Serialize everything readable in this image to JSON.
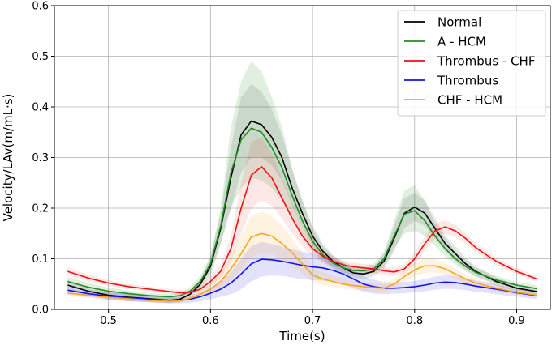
{
  "chart_data": {
    "type": "line",
    "title": "",
    "xlabel": "Time(s)",
    "ylabel": "Velocity/LAv(m/mL·s)",
    "xlim": [
      0.447,
      0.933
    ],
    "ylim": [
      0,
      0.6
    ],
    "xticks": [
      0.5,
      0.6,
      0.7,
      0.8,
      0.9
    ],
    "xtick_labels": [
      "0.5",
      "0.6",
      "0.7",
      "0.8",
      "0.9"
    ],
    "yticks": [
      0,
      0.1,
      0.2,
      0.3,
      0.4,
      0.5,
      0.6
    ],
    "ytick_labels": [
      "0.0",
      "0.1",
      "0.2",
      "0.3",
      "0.4",
      "0.5",
      "0.6"
    ],
    "grid": true,
    "legend_position": "top-right",
    "series": [
      {
        "name": "Normal",
        "color": "#000000",
        "band_opacity": 0.1,
        "x": [
          0.46,
          0.48,
          0.5,
          0.52,
          0.54,
          0.56,
          0.57,
          0.58,
          0.59,
          0.6,
          0.61,
          0.62,
          0.63,
          0.64,
          0.65,
          0.66,
          0.67,
          0.68,
          0.69,
          0.7,
          0.71,
          0.72,
          0.73,
          0.74,
          0.75,
          0.76,
          0.77,
          0.78,
          0.79,
          0.8,
          0.81,
          0.82,
          0.83,
          0.84,
          0.85,
          0.86,
          0.88,
          0.9,
          0.92
        ],
        "y": [
          0.048,
          0.036,
          0.028,
          0.024,
          0.021,
          0.018,
          0.02,
          0.03,
          0.05,
          0.085,
          0.16,
          0.26,
          0.345,
          0.372,
          0.365,
          0.34,
          0.3,
          0.24,
          0.19,
          0.145,
          0.115,
          0.095,
          0.082,
          0.072,
          0.07,
          0.075,
          0.095,
          0.14,
          0.19,
          0.202,
          0.19,
          0.16,
          0.13,
          0.11,
          0.09,
          0.075,
          0.055,
          0.042,
          0.035
        ],
        "lower": [
          0.038,
          0.028,
          0.02,
          0.016,
          0.014,
          0.012,
          0.014,
          0.022,
          0.04,
          0.065,
          0.13,
          0.2,
          0.27,
          0.3,
          0.3,
          0.285,
          0.255,
          0.205,
          0.165,
          0.125,
          0.1,
          0.083,
          0.072,
          0.063,
          0.06,
          0.065,
          0.08,
          0.115,
          0.16,
          0.175,
          0.165,
          0.14,
          0.115,
          0.095,
          0.078,
          0.065,
          0.047,
          0.035,
          0.03
        ],
        "upper": [
          0.058,
          0.044,
          0.036,
          0.032,
          0.028,
          0.024,
          0.026,
          0.038,
          0.06,
          0.105,
          0.19,
          0.32,
          0.42,
          0.445,
          0.43,
          0.395,
          0.345,
          0.275,
          0.215,
          0.165,
          0.13,
          0.107,
          0.092,
          0.081,
          0.08,
          0.085,
          0.11,
          0.165,
          0.22,
          0.23,
          0.215,
          0.18,
          0.145,
          0.125,
          0.102,
          0.085,
          0.063,
          0.049,
          0.04
        ]
      },
      {
        "name": "A - HCM",
        "color": "#228B22",
        "band_opacity": 0.14,
        "x": [
          0.46,
          0.48,
          0.5,
          0.52,
          0.54,
          0.56,
          0.57,
          0.58,
          0.59,
          0.6,
          0.61,
          0.62,
          0.63,
          0.64,
          0.65,
          0.66,
          0.67,
          0.68,
          0.69,
          0.7,
          0.71,
          0.72,
          0.73,
          0.74,
          0.75,
          0.76,
          0.77,
          0.78,
          0.79,
          0.8,
          0.81,
          0.82,
          0.83,
          0.84,
          0.85,
          0.86,
          0.88,
          0.9,
          0.92
        ],
        "y": [
          0.055,
          0.044,
          0.036,
          0.031,
          0.027,
          0.025,
          0.027,
          0.036,
          0.055,
          0.09,
          0.165,
          0.27,
          0.335,
          0.358,
          0.35,
          0.32,
          0.28,
          0.225,
          0.175,
          0.135,
          0.108,
          0.092,
          0.082,
          0.077,
          0.076,
          0.08,
          0.1,
          0.145,
          0.188,
          0.195,
          0.175,
          0.145,
          0.12,
          0.1,
          0.085,
          0.073,
          0.058,
          0.048,
          0.041
        ],
        "lower": [
          0.046,
          0.036,
          0.029,
          0.025,
          0.022,
          0.02,
          0.022,
          0.029,
          0.045,
          0.075,
          0.13,
          0.2,
          0.24,
          0.26,
          0.255,
          0.24,
          0.215,
          0.18,
          0.145,
          0.115,
          0.094,
          0.08,
          0.072,
          0.068,
          0.068,
          0.071,
          0.085,
          0.12,
          0.15,
          0.155,
          0.145,
          0.125,
          0.105,
          0.088,
          0.075,
          0.065,
          0.051,
          0.042,
          0.035
        ],
        "upper": [
          0.064,
          0.052,
          0.043,
          0.037,
          0.032,
          0.03,
          0.032,
          0.043,
          0.065,
          0.105,
          0.2,
          0.36,
          0.45,
          0.49,
          0.47,
          0.42,
          0.36,
          0.28,
          0.215,
          0.16,
          0.125,
          0.105,
          0.093,
          0.087,
          0.085,
          0.09,
          0.115,
          0.175,
          0.235,
          0.245,
          0.215,
          0.17,
          0.14,
          0.115,
          0.097,
          0.082,
          0.066,
          0.054,
          0.047
        ]
      },
      {
        "name": "Thrombus - CHF",
        "color": "#EE1111",
        "band_opacity": 0.1,
        "x": [
          0.46,
          0.48,
          0.5,
          0.52,
          0.54,
          0.56,
          0.57,
          0.58,
          0.59,
          0.6,
          0.61,
          0.62,
          0.63,
          0.64,
          0.65,
          0.66,
          0.67,
          0.68,
          0.69,
          0.7,
          0.71,
          0.72,
          0.73,
          0.74,
          0.75,
          0.76,
          0.77,
          0.78,
          0.79,
          0.8,
          0.81,
          0.82,
          0.83,
          0.84,
          0.85,
          0.86,
          0.87,
          0.88,
          0.9,
          0.92
        ],
        "y": [
          0.075,
          0.062,
          0.052,
          0.045,
          0.04,
          0.035,
          0.033,
          0.034,
          0.04,
          0.055,
          0.075,
          0.12,
          0.2,
          0.265,
          0.282,
          0.26,
          0.22,
          0.18,
          0.145,
          0.12,
          0.105,
          0.095,
          0.088,
          0.084,
          0.082,
          0.08,
          0.076,
          0.074,
          0.08,
          0.1,
          0.13,
          0.155,
          0.163,
          0.155,
          0.14,
          0.122,
          0.108,
          0.095,
          0.075,
          0.06
        ],
        "lower": [
          0.068,
          0.055,
          0.046,
          0.04,
          0.035,
          0.03,
          0.028,
          0.029,
          0.034,
          0.046,
          0.062,
          0.095,
          0.15,
          0.2,
          0.215,
          0.205,
          0.18,
          0.15,
          0.125,
          0.105,
          0.093,
          0.085,
          0.079,
          0.076,
          0.074,
          0.072,
          0.068,
          0.066,
          0.071,
          0.088,
          0.115,
          0.14,
          0.15,
          0.143,
          0.13,
          0.113,
          0.1,
          0.088,
          0.069,
          0.055
        ],
        "upper": [
          0.082,
          0.069,
          0.058,
          0.05,
          0.045,
          0.04,
          0.038,
          0.039,
          0.046,
          0.064,
          0.088,
          0.145,
          0.25,
          0.33,
          0.34,
          0.31,
          0.26,
          0.21,
          0.165,
          0.135,
          0.117,
          0.105,
          0.097,
          0.092,
          0.09,
          0.088,
          0.084,
          0.082,
          0.089,
          0.112,
          0.145,
          0.17,
          0.176,
          0.167,
          0.15,
          0.131,
          0.116,
          0.102,
          0.081,
          0.065
        ]
      },
      {
        "name": "Thrombus",
        "color": "#1111EE",
        "band_opacity": 0.12,
        "x": [
          0.46,
          0.48,
          0.5,
          0.52,
          0.54,
          0.56,
          0.57,
          0.58,
          0.59,
          0.6,
          0.61,
          0.62,
          0.63,
          0.64,
          0.65,
          0.66,
          0.67,
          0.68,
          0.69,
          0.7,
          0.71,
          0.72,
          0.73,
          0.74,
          0.75,
          0.76,
          0.77,
          0.78,
          0.79,
          0.8,
          0.81,
          0.82,
          0.83,
          0.84,
          0.85,
          0.86,
          0.88,
          0.9,
          0.92
        ],
        "y": [
          0.038,
          0.031,
          0.026,
          0.023,
          0.02,
          0.018,
          0.018,
          0.02,
          0.025,
          0.032,
          0.04,
          0.052,
          0.07,
          0.09,
          0.099,
          0.098,
          0.095,
          0.091,
          0.087,
          0.084,
          0.082,
          0.077,
          0.07,
          0.06,
          0.05,
          0.045,
          0.042,
          0.042,
          0.043,
          0.045,
          0.048,
          0.052,
          0.054,
          0.053,
          0.05,
          0.046,
          0.04,
          0.033,
          0.027
        ],
        "lower": [
          0.03,
          0.024,
          0.019,
          0.016,
          0.014,
          0.012,
          0.012,
          0.013,
          0.016,
          0.02,
          0.025,
          0.03,
          0.04,
          0.055,
          0.065,
          0.067,
          0.066,
          0.063,
          0.06,
          0.058,
          0.057,
          0.054,
          0.049,
          0.042,
          0.035,
          0.031,
          0.03,
          0.031,
          0.032,
          0.034,
          0.036,
          0.039,
          0.041,
          0.04,
          0.038,
          0.035,
          0.03,
          0.025,
          0.02
        ],
        "upper": [
          0.046,
          0.038,
          0.033,
          0.03,
          0.026,
          0.024,
          0.024,
          0.027,
          0.034,
          0.044,
          0.055,
          0.074,
          0.1,
          0.125,
          0.133,
          0.129,
          0.124,
          0.119,
          0.114,
          0.11,
          0.107,
          0.1,
          0.091,
          0.078,
          0.065,
          0.059,
          0.054,
          0.053,
          0.054,
          0.056,
          0.06,
          0.065,
          0.067,
          0.066,
          0.062,
          0.057,
          0.05,
          0.041,
          0.034
        ]
      },
      {
        "name": "CHF - HCM",
        "color": "#F5A623",
        "band_opacity": 0.14,
        "x": [
          0.46,
          0.48,
          0.5,
          0.52,
          0.54,
          0.56,
          0.57,
          0.58,
          0.59,
          0.6,
          0.61,
          0.62,
          0.63,
          0.64,
          0.65,
          0.66,
          0.67,
          0.68,
          0.69,
          0.7,
          0.71,
          0.72,
          0.73,
          0.74,
          0.75,
          0.76,
          0.77,
          0.78,
          0.79,
          0.8,
          0.81,
          0.82,
          0.83,
          0.84,
          0.85,
          0.86,
          0.88,
          0.9,
          0.92
        ],
        "y": [
          0.032,
          0.028,
          0.024,
          0.021,
          0.018,
          0.016,
          0.017,
          0.022,
          0.03,
          0.04,
          0.055,
          0.08,
          0.11,
          0.143,
          0.15,
          0.145,
          0.13,
          0.112,
          0.09,
          0.068,
          0.06,
          0.055,
          0.05,
          0.047,
          0.045,
          0.043,
          0.042,
          0.05,
          0.065,
          0.078,
          0.086,
          0.086,
          0.08,
          0.07,
          0.06,
          0.052,
          0.042,
          0.034,
          0.028
        ],
        "lower": [
          0.026,
          0.022,
          0.019,
          0.016,
          0.014,
          0.012,
          0.013,
          0.017,
          0.023,
          0.03,
          0.04,
          0.057,
          0.078,
          0.103,
          0.11,
          0.108,
          0.098,
          0.086,
          0.07,
          0.054,
          0.048,
          0.045,
          0.041,
          0.039,
          0.037,
          0.035,
          0.034,
          0.041,
          0.054,
          0.065,
          0.072,
          0.073,
          0.068,
          0.06,
          0.051,
          0.044,
          0.036,
          0.029,
          0.024
        ],
        "upper": [
          0.038,
          0.034,
          0.029,
          0.026,
          0.022,
          0.02,
          0.021,
          0.027,
          0.037,
          0.05,
          0.07,
          0.105,
          0.145,
          0.185,
          0.193,
          0.185,
          0.165,
          0.14,
          0.112,
          0.084,
          0.074,
          0.067,
          0.06,
          0.056,
          0.053,
          0.051,
          0.05,
          0.06,
          0.076,
          0.091,
          0.1,
          0.099,
          0.092,
          0.08,
          0.069,
          0.06,
          0.048,
          0.039,
          0.032
        ]
      }
    ]
  }
}
